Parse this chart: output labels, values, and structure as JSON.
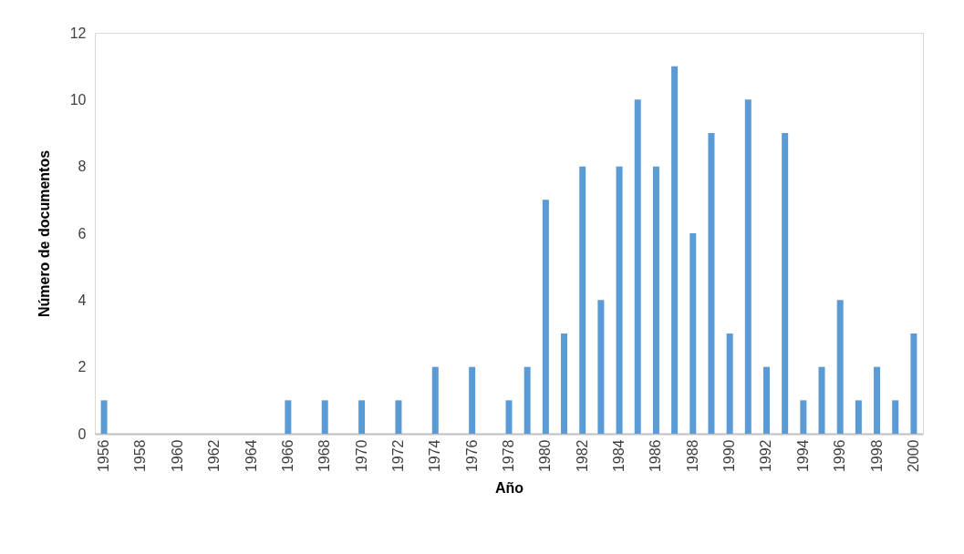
{
  "chart_data": {
    "type": "bar",
    "xlabel": "Año",
    "ylabel": "Número de documentos",
    "categories": [
      "1956",
      null,
      "1958",
      null,
      "1960",
      null,
      "1962",
      null,
      "1964",
      null,
      "1966",
      null,
      "1968",
      null,
      "1970",
      null,
      "1972",
      null,
      "1974",
      null,
      "1976",
      null,
      "1978",
      null,
      "1980",
      null,
      "1982",
      null,
      "1984",
      null,
      "1986",
      null,
      "1988",
      null,
      "1990",
      null,
      "1992",
      null,
      "1994",
      null,
      "1996",
      null,
      "1998",
      null,
      "2000"
    ],
    "values": [
      1,
      0,
      0,
      0,
      0,
      0,
      0,
      0,
      0,
      0,
      1,
      0,
      1,
      0,
      1,
      0,
      1,
      0,
      2,
      0,
      2,
      0,
      1,
      2,
      7,
      3,
      8,
      4,
      8,
      10,
      8,
      11,
      6,
      9,
      3,
      10,
      2,
      9,
      1,
      2,
      4,
      1,
      2,
      1,
      3
    ],
    "color": "#5b9bd5",
    "ylim": [
      0,
      12
    ],
    "yticks": [
      0,
      2,
      4,
      6,
      8,
      10,
      12
    ],
    "grid": false
  }
}
